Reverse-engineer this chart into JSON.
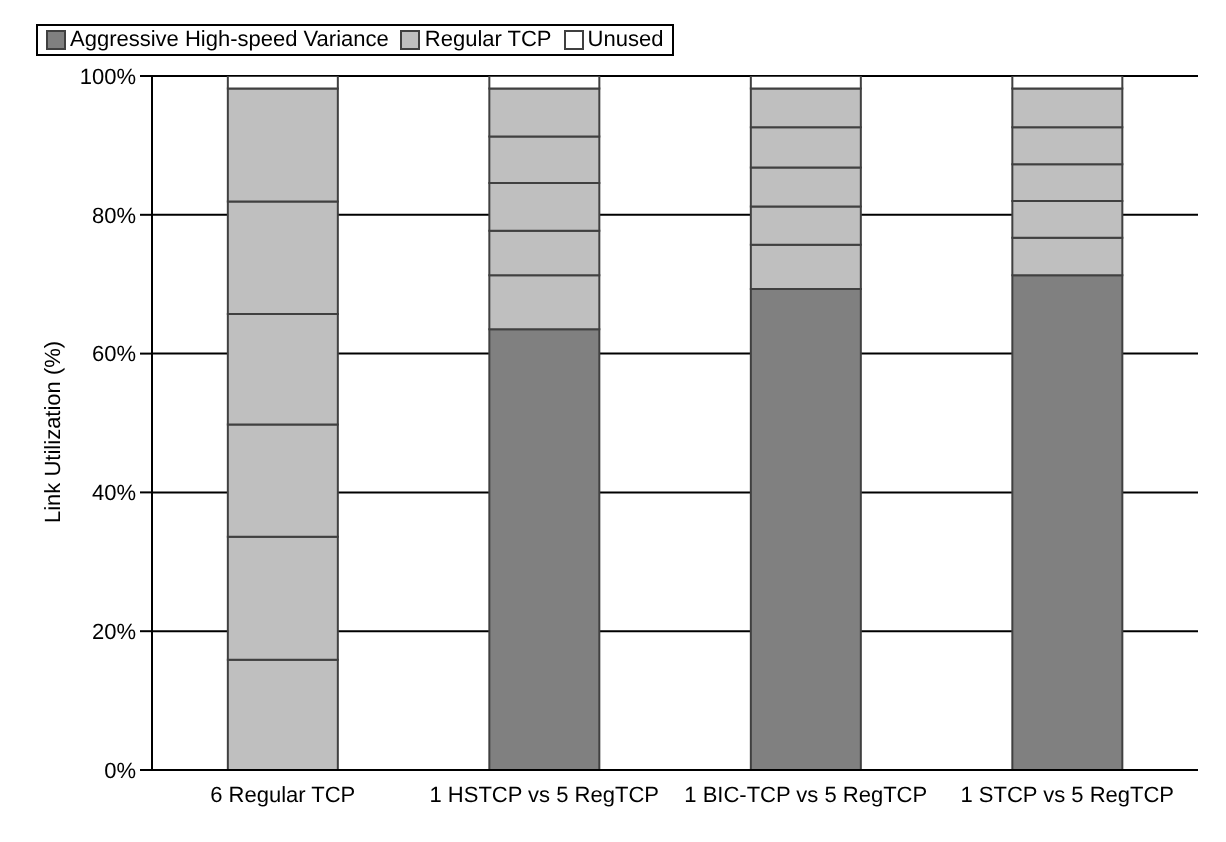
{
  "chart_data": {
    "type": "bar",
    "stacked": true,
    "ylabel": "Link Utilization (%)",
    "categories": [
      "6 Regular TCP",
      "1 HSTCP vs 5 RegTCP",
      "1 BIC-TCP vs 5 RegTCP",
      "1 STCP vs 5 RegTCP"
    ],
    "series": [
      {
        "name": "Aggressive High-speed Variance",
        "color": "#808080",
        "values": [
          null,
          63.5,
          69.3,
          71.3
        ]
      },
      {
        "name": "Regular TCP",
        "color": "#bfbfbf",
        "values": [
          15.9,
          7.8,
          6.4,
          5.4
        ]
      },
      {
        "color": "#bfbfbf",
        "values": [
          17.7,
          6.4,
          5.5,
          5.3
        ]
      },
      {
        "color": "#bfbfbf",
        "values": [
          16.2,
          6.9,
          5.6,
          5.3
        ]
      },
      {
        "color": "#bfbfbf",
        "values": [
          15.9,
          6.7,
          5.8,
          5.3
        ]
      },
      {
        "color": "#bfbfbf",
        "values": [
          16.2,
          6.9,
          5.6,
          5.6
        ]
      },
      {
        "color": "#bfbfbf",
        "values": [
          16.3,
          null,
          null,
          null
        ]
      },
      {
        "name": "Unused",
        "color": "#ffffff",
        "values": [
          1.8,
          1.8,
          1.8,
          1.8
        ]
      }
    ],
    "ylim": [
      0,
      100
    ],
    "yticks": [
      {
        "value": 0,
        "label": "0%"
      },
      {
        "value": 20,
        "label": "20%"
      },
      {
        "value": 40,
        "label": "40%"
      },
      {
        "value": 60,
        "label": "60%"
      },
      {
        "value": 80,
        "label": "80%"
      },
      {
        "value": 100,
        "label": "100%"
      }
    ],
    "grid": "y",
    "legend": "top"
  }
}
